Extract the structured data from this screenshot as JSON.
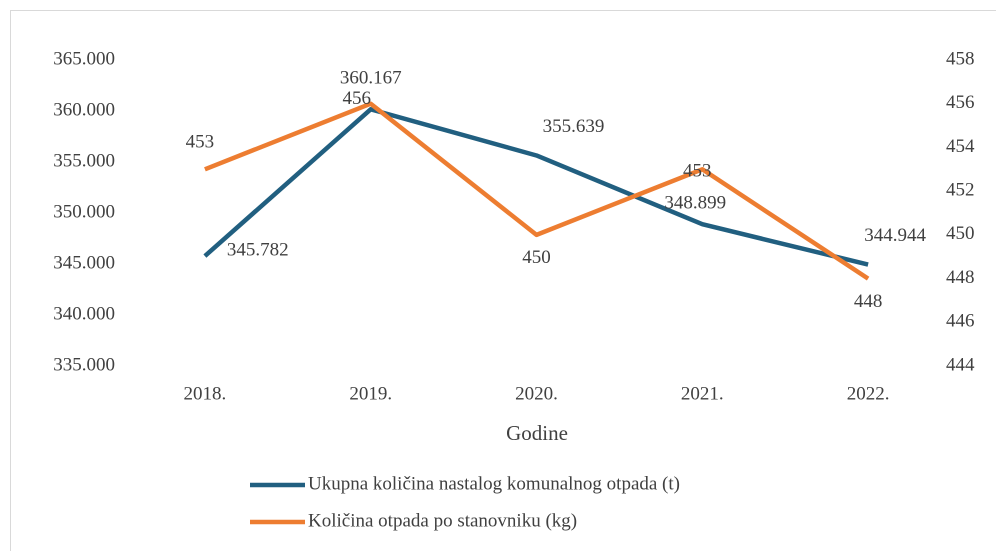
{
  "chart_data": {
    "type": "line",
    "categories": [
      "2018.",
      "2019.",
      "2020.",
      "2021.",
      "2022."
    ],
    "x_label": "Godine",
    "series": [
      {
        "name": "Ukupna količina nastalog komunalnog otpada (t)",
        "color": "#215F80",
        "values": [
          345782,
          360167,
          355639,
          348899,
          344944
        ],
        "value_labels": [
          "345.782",
          "360.167",
          "355.639",
          "348.899",
          "344.944"
        ]
      },
      {
        "name": "Količina otpada po stanovniku (kg)",
        "color": "#ED7D31",
        "axis": "y2",
        "values": [
          453,
          456,
          450,
          453,
          448
        ]
      }
    ],
    "ylim": [
      335000,
      365000
    ],
    "yticks": [
      {
        "value": 335000,
        "label": "335.000"
      },
      {
        "value": 340000,
        "label": "340.000"
      },
      {
        "value": 345000,
        "label": "345.000"
      },
      {
        "value": 350000,
        "label": "350.000"
      },
      {
        "value": 355000,
        "label": "355.000"
      },
      {
        "value": 360000,
        "label": "360.000"
      },
      {
        "value": 365000,
        "label": "365.000"
      }
    ],
    "y2lim": [
      444,
      458
    ],
    "y2ticks": [
      444,
      446,
      448,
      450,
      452,
      454,
      456,
      458
    ],
    "legend": "bottom"
  }
}
